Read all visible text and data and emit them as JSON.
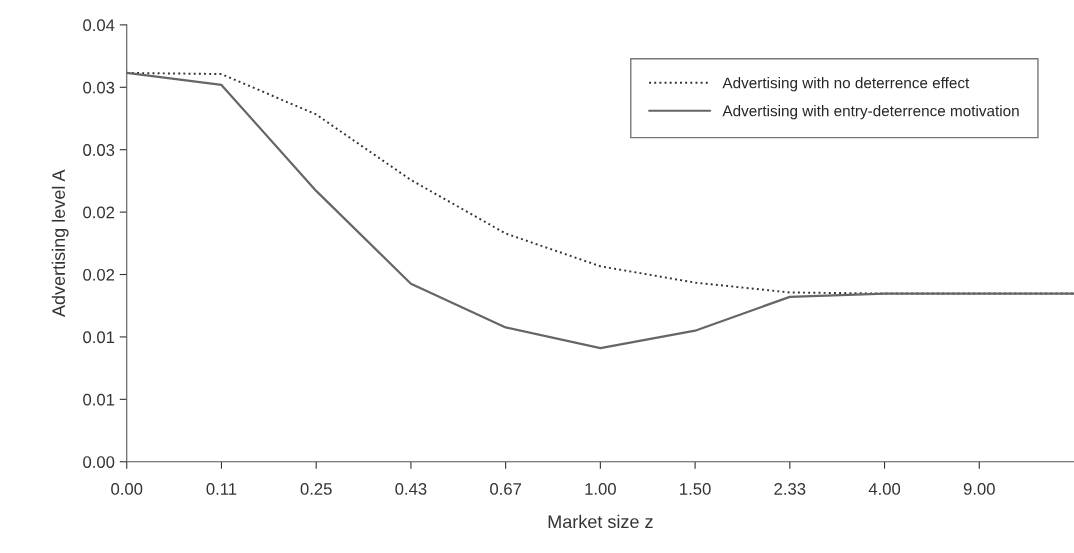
{
  "chart_data": {
    "type": "line",
    "xlabel": "Market size z",
    "ylabel": "Advertising level A",
    "categories": [
      "0.00",
      "0.11",
      "0.25",
      "0.43",
      "0.67",
      "1.00",
      "1.50",
      "2.33",
      "4.00",
      "9.00",
      null
    ],
    "ylim": [
      0,
      0.04
    ],
    "yticks": [
      {
        "value": 0,
        "label": "0.00"
      },
      {
        "value": 0.005714,
        "label": "0.01"
      },
      {
        "value": 0.011429,
        "label": "0.01"
      },
      {
        "value": 0.017143,
        "label": "0.02"
      },
      {
        "value": 0.022857,
        "label": "0.02"
      },
      {
        "value": 0.028571,
        "label": "0.03"
      },
      {
        "value": 0.034286,
        "label": "0.03"
      },
      {
        "value": 0.04,
        "label": "0.04"
      }
    ],
    "grid": false,
    "legend": "top right",
    "marker": "none",
    "series": [
      {
        "name": "Advertising with no deterrence effect",
        "color": "#333333",
        "line_style": "dotted",
        "values": [
          0.0356,
          0.0355,
          0.0318,
          0.0258,
          0.0209,
          0.0179,
          0.0164,
          0.0155,
          0.0154,
          0.0154,
          0.0154
        ]
      },
      {
        "name": "Advertising with entry-deterrence motivation",
        "color": "#666666",
        "line_style": "solid",
        "values": [
          0.0356,
          0.0345,
          0.0248,
          0.0163,
          0.0123,
          0.0104,
          0.012,
          0.0151,
          0.0154,
          0.0154,
          0.0154
        ]
      }
    ]
  }
}
